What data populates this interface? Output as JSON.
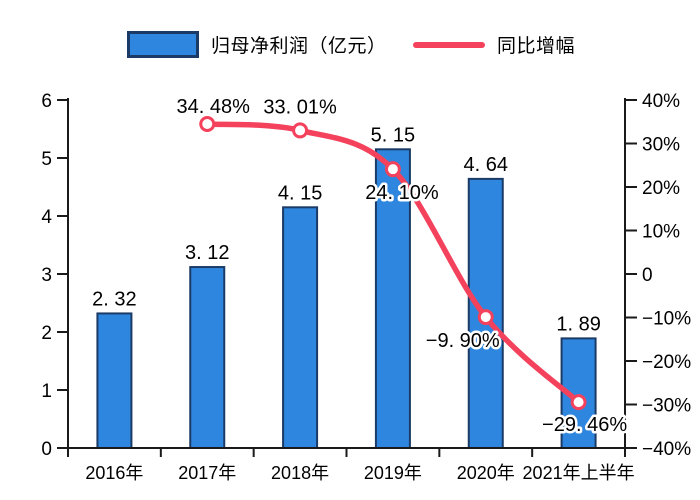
{
  "legend": {
    "bar_label": "归母净利润（亿元）",
    "line_label": "同比增幅"
  },
  "colors": {
    "bar_fill": "#2E86DE",
    "bar_border": "#1B3B66",
    "line": "#F4415C",
    "marker_fill": "#FFFFFF",
    "axis": "#1A1A1A",
    "text": "#000000",
    "label_halo": "#FFFFFF"
  },
  "chart_data": {
    "type": "bar",
    "subtype": "bar+line combo, dual y-axis, no gridlines, smooth line",
    "categories": [
      "2016年",
      "2017年",
      "2018年",
      "2019年",
      "2020年",
      "2021年上半年"
    ],
    "series": [
      {
        "name": "归母净利润（亿元）",
        "type": "bar",
        "axis": "left",
        "values": [
          2.32,
          3.12,
          4.15,
          5.15,
          4.64,
          1.89
        ],
        "labels": [
          "2. 32",
          "3. 12",
          "4. 15",
          "5. 15",
          "4. 64",
          "1. 89"
        ]
      },
      {
        "name": "同比增幅",
        "type": "line",
        "axis": "right",
        "values": [
          null,
          34.48,
          33.01,
          24.1,
          -9.9,
          -29.46
        ],
        "labels": [
          null,
          "34. 48%",
          "33. 01%",
          "24. 10%",
          "−9. 90%",
          "−29. 46%"
        ]
      }
    ],
    "left_axis": {
      "min": 0,
      "max": 6,
      "step": 1,
      "ticks": [
        "0",
        "1",
        "2",
        "3",
        "4",
        "5",
        "6"
      ]
    },
    "right_axis": {
      "min": -40,
      "max": 40,
      "step": 10,
      "ticks": [
        "−40%",
        "−30%",
        "−20%",
        "−10%",
        "0",
        "10%",
        "20%",
        "30%",
        "40%"
      ]
    },
    "legend_position": "top",
    "grid": false
  }
}
